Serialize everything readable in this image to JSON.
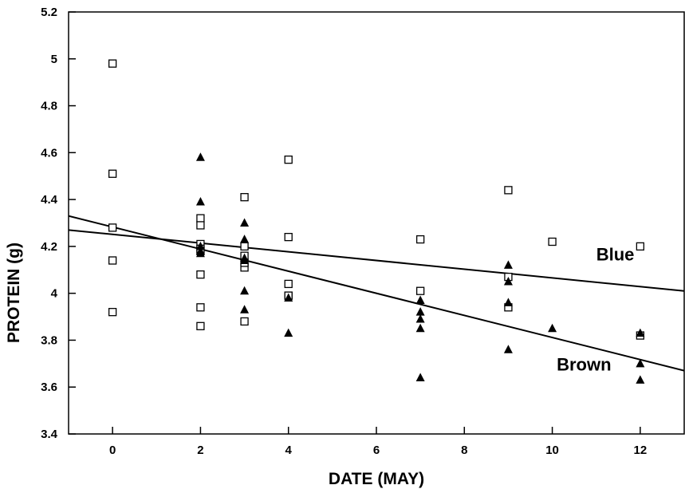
{
  "chart_data": {
    "type": "scatter",
    "title": "",
    "xlabel": "DATE (MAY)",
    "ylabel": "PROTEIN (g)",
    "xlim": [
      -1,
      13
    ],
    "ylim": [
      3.4,
      5.2
    ],
    "x_ticks": [
      0,
      2,
      4,
      6,
      8,
      10,
      12
    ],
    "x_tick_labels": [
      "0",
      "2",
      "4",
      "6",
      "8",
      "10",
      "12"
    ],
    "y_ticks": [
      3.4,
      3.6,
      3.8,
      4.0,
      4.2,
      4.4,
      4.6,
      4.8,
      5.0,
      5.2
    ],
    "y_tick_labels": [
      "3.4",
      "3.6",
      "3.8",
      "4",
      "4.2",
      "4.4",
      "4.6",
      "4.8",
      "5",
      "5.2"
    ],
    "grid": false,
    "legend": "none",
    "series": [
      {
        "name": "Blue",
        "marker": "open-square",
        "color": "#000000",
        "x": [
          0,
          0,
          0,
          0,
          0,
          2,
          2,
          2,
          2,
          2,
          2,
          2,
          2,
          3,
          3,
          3,
          3,
          3,
          3,
          4,
          4,
          4,
          4,
          4,
          7,
          7,
          9,
          9,
          9,
          10,
          12,
          12
        ],
        "y": [
          4.98,
          4.51,
          4.28,
          4.14,
          3.92,
          4.32,
          4.29,
          4.21,
          4.19,
          4.08,
          3.94,
          3.86,
          4.18,
          4.41,
          4.2,
          4.16,
          4.11,
          3.88,
          4.13,
          4.57,
          4.24,
          4.04,
          3.99,
          3.99,
          4.23,
          4.01,
          4.44,
          4.07,
          3.94,
          4.22,
          4.2,
          3.82
        ],
        "trend": {
          "x": [
            -1,
            13
          ],
          "y": [
            4.27,
            4.01
          ]
        }
      },
      {
        "name": "Brown",
        "marker": "filled-triangle",
        "color": "#000000",
        "x": [
          2,
          2,
          2,
          2,
          2,
          3,
          3,
          3,
          3,
          3,
          3,
          4,
          4,
          7,
          7,
          7,
          7,
          7,
          9,
          9,
          9,
          9,
          10,
          12,
          12,
          12
        ],
        "y": [
          4.58,
          4.39,
          4.2,
          4.18,
          4.17,
          4.3,
          4.23,
          4.15,
          4.01,
          3.93,
          4.14,
          3.98,
          3.83,
          3.97,
          3.92,
          3.89,
          3.85,
          3.64,
          4.12,
          4.05,
          3.96,
          3.76,
          3.85,
          3.83,
          3.7,
          3.63
        ],
        "trend": {
          "x": [
            -1,
            13
          ],
          "y": [
            4.33,
            3.67
          ]
        }
      }
    ],
    "annotations": [
      {
        "text": "Blue",
        "x": 11.0,
        "y": 4.14
      },
      {
        "text": "Brown",
        "x": 10.1,
        "y": 3.67
      }
    ]
  }
}
